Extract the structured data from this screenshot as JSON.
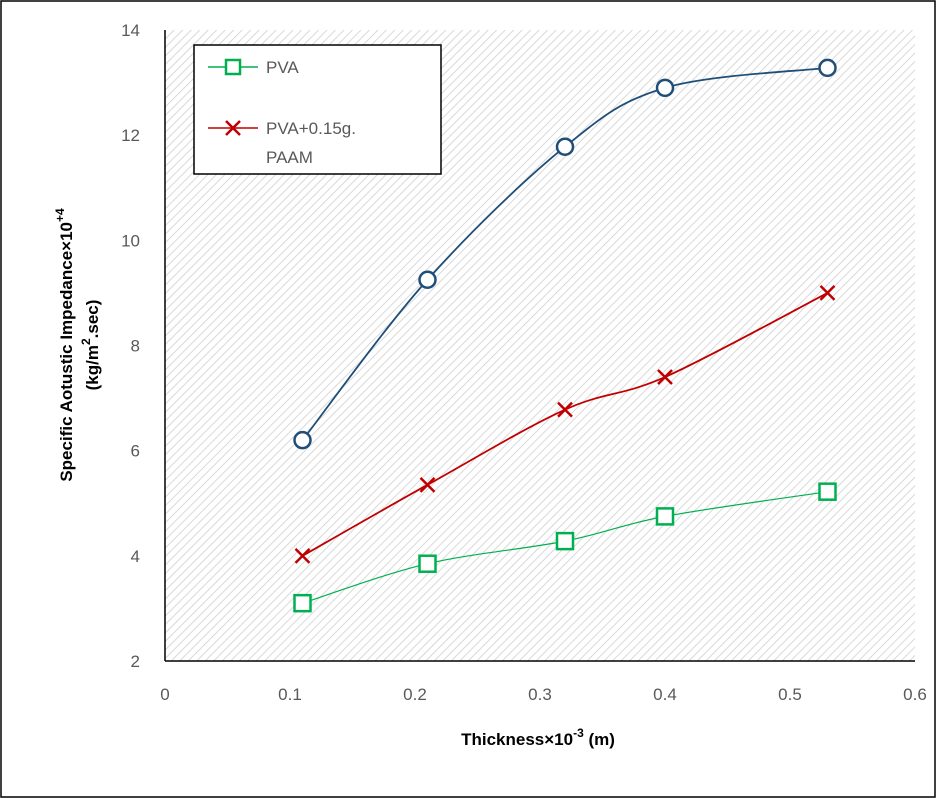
{
  "chart_data": {
    "type": "line",
    "x": [
      0.11,
      0.21,
      0.32,
      0.4,
      0.53
    ],
    "series": [
      {
        "name": "",
        "marker": "circle",
        "color": "#1F4E79",
        "values": [
          6.2,
          9.25,
          11.78,
          12.9,
          13.28
        ]
      },
      {
        "name": "PVA+0.15g. PAAM",
        "marker": "x",
        "color": "#C00000",
        "values": [
          4.0,
          5.35,
          6.78,
          7.4,
          9.0
        ]
      },
      {
        "name": "PVA",
        "marker": "square",
        "color": "#00B050",
        "values": [
          3.1,
          3.85,
          4.28,
          4.75,
          5.22
        ]
      }
    ],
    "xlabel": "Thickness×10",
    "xlabel_sup": "-3",
    "xlabel_unit": " (m)",
    "ylabel_line1": "Specific Aotustic Impedance×10",
    "ylabel_line1_sup": "+4",
    "ylabel_line2_pre": "(kg/m",
    "ylabel_line2_sup": "2",
    "ylabel_line2_post": ".sec)",
    "xlim": [
      0,
      0.6
    ],
    "ylim": [
      2,
      14
    ],
    "xticks": [
      "0",
      "0.1",
      "0.2",
      "0.3",
      "0.4",
      "0.5",
      "0.6"
    ],
    "yticks": [
      "2",
      "4",
      "6",
      "8",
      "10",
      "12",
      "14"
    ],
    "legend": {
      "placement": "top-left",
      "entries": [
        "PVA",
        "PVA+0.15g.",
        "PAAM"
      ]
    },
    "grid": false,
    "plot_background": "hatched"
  }
}
